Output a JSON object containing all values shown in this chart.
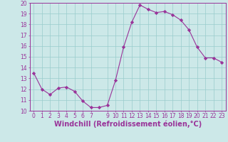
{
  "x": [
    0,
    1,
    2,
    3,
    4,
    5,
    6,
    7,
    8,
    9,
    10,
    11,
    12,
    13,
    14,
    15,
    16,
    17,
    18,
    19,
    20,
    21,
    22,
    23
  ],
  "y": [
    13.5,
    12.0,
    11.5,
    12.1,
    12.2,
    11.8,
    10.9,
    10.3,
    10.3,
    10.5,
    12.8,
    15.9,
    18.2,
    19.8,
    19.4,
    19.1,
    19.2,
    18.9,
    18.4,
    17.5,
    15.9,
    14.9,
    14.9,
    14.5
  ],
  "line_color": "#993399",
  "marker": "D",
  "marker_size": 2.2,
  "bg_color": "#cce8e8",
  "grid_color": "#99cccc",
  "xlabel": "Windchill (Refroidissement éolien,°C)",
  "ylim": [
    10,
    20
  ],
  "xlim_min": -0.5,
  "xlim_max": 23.5,
  "yticks": [
    10,
    11,
    12,
    13,
    14,
    15,
    16,
    17,
    18,
    19,
    20
  ],
  "xticks": [
    0,
    1,
    2,
    3,
    4,
    5,
    6,
    7,
    9,
    10,
    11,
    12,
    13,
    14,
    15,
    16,
    17,
    18,
    19,
    20,
    21,
    22,
    23
  ],
  "tick_color": "#993399",
  "tick_fontsize": 5.5,
  "xlabel_fontsize": 7.0,
  "spine_color": "#993399",
  "linewidth": 0.8
}
